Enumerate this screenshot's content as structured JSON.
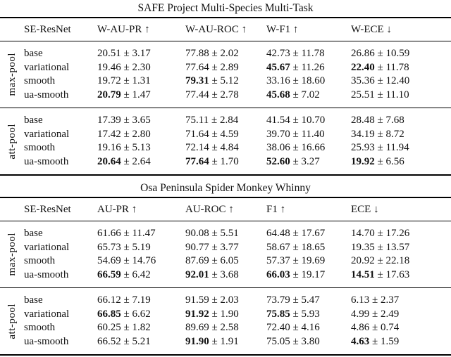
{
  "plus_minus": "±",
  "tables": [
    {
      "title": "SAFE Project Multi-Species Multi-Task",
      "model_header": "SE-ResNet",
      "columns": [
        "W-AU-PR ↑",
        "W-AU-ROC ↑",
        "W-F1 ↑",
        "W-ECE ↓"
      ],
      "groups": [
        {
          "label": "max-pool",
          "rows": [
            {
              "method": "base",
              "cells": [
                {
                  "mean": "20.51",
                  "std": "3.17",
                  "bold": false
                },
                {
                  "mean": "77.88",
                  "std": "2.02",
                  "bold": false
                },
                {
                  "mean": "42.73",
                  "std": "11.78",
                  "bold": false
                },
                {
                  "mean": "26.86",
                  "std": "10.59",
                  "bold": false
                }
              ]
            },
            {
              "method": "variational",
              "cells": [
                {
                  "mean": "19.46",
                  "std": "2.30",
                  "bold": false
                },
                {
                  "mean": "77.64",
                  "std": "2.89",
                  "bold": false
                },
                {
                  "mean": "45.67",
                  "std": "11.26",
                  "bold": true
                },
                {
                  "mean": "22.40",
                  "std": "11.78",
                  "bold": true
                }
              ]
            },
            {
              "method": "smooth",
              "cells": [
                {
                  "mean": "19.72",
                  "std": "1.31",
                  "bold": false
                },
                {
                  "mean": "79.31",
                  "std": "5.12",
                  "bold": true
                },
                {
                  "mean": "33.16",
                  "std": "18.60",
                  "bold": false
                },
                {
                  "mean": "35.36",
                  "std": "12.40",
                  "bold": false
                }
              ]
            },
            {
              "method": "ua-smooth",
              "cells": [
                {
                  "mean": "20.79",
                  "std": "1.47",
                  "bold": true
                },
                {
                  "mean": "77.44",
                  "std": "2.78",
                  "bold": false
                },
                {
                  "mean": "45.68",
                  "std": "7.02",
                  "bold": true
                },
                {
                  "mean": "25.51",
                  "std": "11.10",
                  "bold": false
                }
              ]
            }
          ]
        },
        {
          "label": "att-pool",
          "rows": [
            {
              "method": "base",
              "cells": [
                {
                  "mean": "17.39",
                  "std": "3.65",
                  "bold": false
                },
                {
                  "mean": "75.11",
                  "std": "2.84",
                  "bold": false
                },
                {
                  "mean": "41.54",
                  "std": "10.70",
                  "bold": false
                },
                {
                  "mean": "28.48",
                  "std": "7.68",
                  "bold": false
                }
              ]
            },
            {
              "method": "variational",
              "cells": [
                {
                  "mean": "17.42",
                  "std": "2.80",
                  "bold": false
                },
                {
                  "mean": "71.64",
                  "std": "4.59",
                  "bold": false
                },
                {
                  "mean": "39.70",
                  "std": "11.40",
                  "bold": false
                },
                {
                  "mean": "34.19",
                  "std": "8.72",
                  "bold": false
                }
              ]
            },
            {
              "method": "smooth",
              "cells": [
                {
                  "mean": "19.16",
                  "std": "5.13",
                  "bold": false
                },
                {
                  "mean": "72.14",
                  "std": "4.84",
                  "bold": false
                },
                {
                  "mean": "38.06",
                  "std": "16.66",
                  "bold": false
                },
                {
                  "mean": "25.93",
                  "std": "11.94",
                  "bold": false
                }
              ]
            },
            {
              "method": "ua-smooth",
              "cells": [
                {
                  "mean": "20.64",
                  "std": "2.64",
                  "bold": true
                },
                {
                  "mean": "77.64",
                  "std": "1.70",
                  "bold": true
                },
                {
                  "mean": "52.60",
                  "std": "3.27",
                  "bold": true
                },
                {
                  "mean": "19.92",
                  "std": "6.56",
                  "bold": true
                }
              ]
            }
          ]
        }
      ]
    },
    {
      "title": "Osa Peninsula Spider Monkey Whinny",
      "model_header": "SE-ResNet",
      "columns": [
        "AU-PR ↑",
        "AU-ROC ↑",
        "F1 ↑",
        "ECE ↓"
      ],
      "groups": [
        {
          "label": "max-pool",
          "rows": [
            {
              "method": "base",
              "cells": [
                {
                  "mean": "61.66",
                  "std": "11.47",
                  "bold": false
                },
                {
                  "mean": "90.08",
                  "std": "5.51",
                  "bold": false
                },
                {
                  "mean": "64.48",
                  "std": "17.67",
                  "bold": false
                },
                {
                  "mean": "14.70",
                  "std": "17.26",
                  "bold": false
                }
              ]
            },
            {
              "method": "variational",
              "cells": [
                {
                  "mean": "65.73",
                  "std": "5.19",
                  "bold": false
                },
                {
                  "mean": "90.77",
                  "std": "3.77",
                  "bold": false
                },
                {
                  "mean": "58.67",
                  "std": "18.65",
                  "bold": false
                },
                {
                  "mean": "19.35",
                  "std": "13.57",
                  "bold": false
                }
              ]
            },
            {
              "method": "smooth",
              "cells": [
                {
                  "mean": "54.69",
                  "std": "14.76",
                  "bold": false
                },
                {
                  "mean": "87.69",
                  "std": "6.05",
                  "bold": false
                },
                {
                  "mean": "57.37",
                  "std": "19.69",
                  "bold": false
                },
                {
                  "mean": "20.92",
                  "std": "22.18",
                  "bold": false
                }
              ]
            },
            {
              "method": "ua-smooth",
              "cells": [
                {
                  "mean": "66.59",
                  "std": "6.42",
                  "bold": true
                },
                {
                  "mean": "92.01",
                  "std": "3.68",
                  "bold": true
                },
                {
                  "mean": "66.03",
                  "std": "19.17",
                  "bold": true
                },
                {
                  "mean": "14.51",
                  "std": "17.63",
                  "bold": true
                }
              ]
            }
          ]
        },
        {
          "label": "att-pool",
          "rows": [
            {
              "method": "base",
              "cells": [
                {
                  "mean": "66.12",
                  "std": "7.19",
                  "bold": false
                },
                {
                  "mean": "91.59",
                  "std": "2.03",
                  "bold": false
                },
                {
                  "mean": "73.79",
                  "std": "5.47",
                  "bold": false
                },
                {
                  "mean": "6.13",
                  "std": "2.37",
                  "bold": false
                }
              ]
            },
            {
              "method": "variational",
              "cells": [
                {
                  "mean": "66.85",
                  "std": "6.62",
                  "bold": true
                },
                {
                  "mean": "91.92",
                  "std": "1.90",
                  "bold": true
                },
                {
                  "mean": "75.85",
                  "std": "5.93",
                  "bold": true
                },
                {
                  "mean": "4.99",
                  "std": "2.49",
                  "bold": false
                }
              ]
            },
            {
              "method": "smooth",
              "cells": [
                {
                  "mean": "60.25",
                  "std": "1.82",
                  "bold": false
                },
                {
                  "mean": "89.69",
                  "std": "2.58",
                  "bold": false
                },
                {
                  "mean": "72.40",
                  "std": "4.16",
                  "bold": false
                },
                {
                  "mean": "4.86",
                  "std": "0.74",
                  "bold": false
                }
              ]
            },
            {
              "method": "ua-smooth",
              "cells": [
                {
                  "mean": "66.52",
                  "std": "5.21",
                  "bold": false
                },
                {
                  "mean": "91.90",
                  "std": "1.91",
                  "bold": true
                },
                {
                  "mean": "75.05",
                  "std": "3.80",
                  "bold": false
                },
                {
                  "mean": "4.63",
                  "std": "1.59",
                  "bold": true
                }
              ]
            }
          ]
        }
      ]
    }
  ]
}
